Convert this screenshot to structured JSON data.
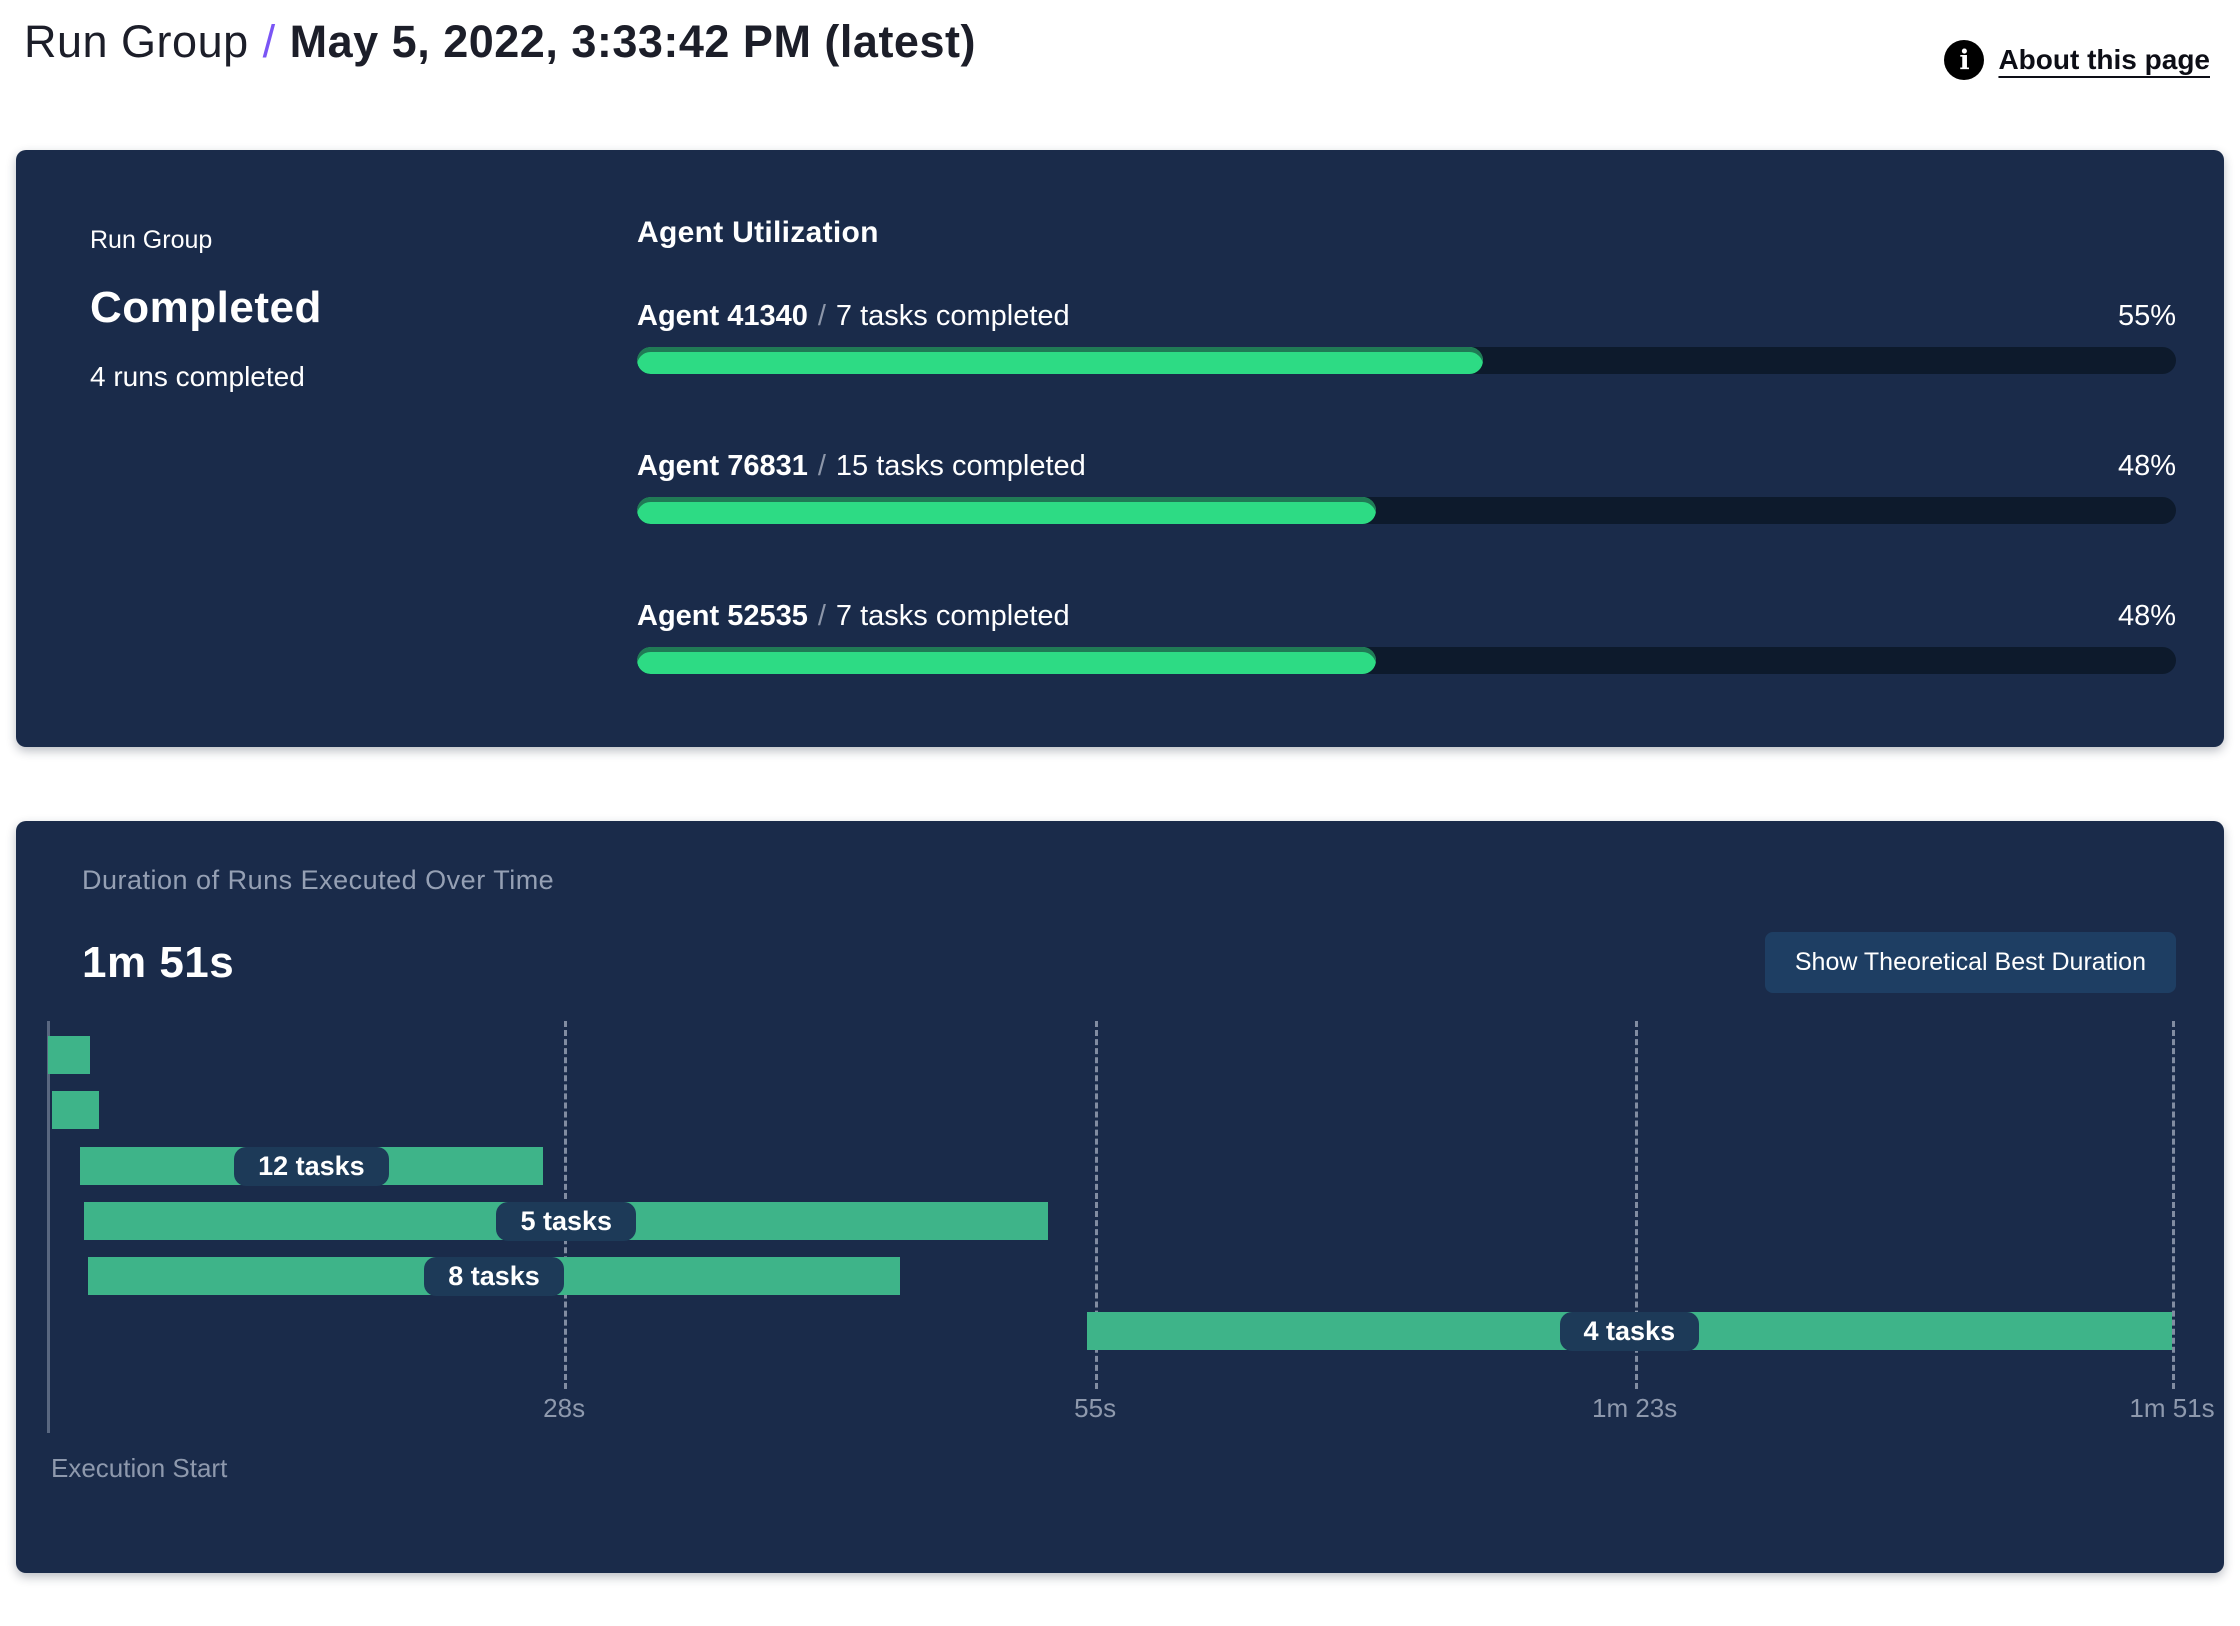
{
  "page": {
    "breadcrumb": {
      "root": "Run Group",
      "separator": "/",
      "current": "May 5, 2022, 3:33:42 PM (latest)"
    },
    "about_link": {
      "label": "About this page",
      "icon": "info-icon",
      "icon_glyph": "i"
    }
  },
  "run_group_card": {
    "eyebrow": "Run Group",
    "status": "Completed",
    "runs_summary": "4 runs completed"
  },
  "duration_card": {
    "title": "Duration of Runs Executed Over Time",
    "total_duration": "1m 51s",
    "button_label": "Show Theoretical Best Duration",
    "execution_start_label": "Execution Start"
  },
  "colors": {
    "card_bg": "#1a2b4a",
    "accent_purple": "#7a55f5",
    "utilization_fill": "#2ddb84",
    "utilization_fill_rim": "#207a55",
    "utilization_track": "#0d1a2c",
    "gantt_bar": "#3eb489",
    "pill_bg": "#1d3a58",
    "button_bg": "#1e3e63",
    "muted_text": "#8e99ad",
    "info_icon_bg": "#000000"
  },
  "chart_data": [
    {
      "id": "agent-utilization",
      "type": "bar",
      "title": "Agent Utilization",
      "unit": "%",
      "xlim": [
        0,
        100
      ],
      "separator": "/",
      "bars": [
        {
          "name": "Agent 41340",
          "tasks_label": "7 tasks completed",
          "value": 55
        },
        {
          "name": "Agent 76831",
          "tasks_label": "15 tasks completed",
          "value": 48
        },
        {
          "name": "Agent 52535",
          "tasks_label": "7 tasks completed",
          "value": 48
        }
      ],
      "bar_color": "#2ddb84",
      "track_color": "#0d1a2c",
      "value_label_position": "right"
    },
    {
      "id": "run-duration-gantt",
      "type": "bar",
      "subtype": "gantt",
      "title": "Duration of Runs Executed Over Time",
      "total_duration": "1m 51s",
      "xlabel": "Execution Start",
      "time_range_s": [
        0,
        111
      ],
      "grid": true,
      "gridline_style": "dashed",
      "x_ticks": [
        {
          "label": "28s",
          "pos_pct": 24.3
        },
        {
          "label": "55s",
          "pos_pct": 49.3
        },
        {
          "label": "1m 23s",
          "pos_pct": 74.7
        },
        {
          "label": "1m 51s",
          "pos_pct": 100
        }
      ],
      "bars": [
        {
          "row": 0,
          "label": null,
          "start_s": 0,
          "end_s": 2.2,
          "start_pct": 0,
          "end_pct": 2.0
        },
        {
          "row": 1,
          "label": null,
          "start_s": 0.2,
          "end_s": 2.7,
          "start_pct": 0.2,
          "end_pct": 2.4
        },
        {
          "row": 2,
          "label": "12 tasks",
          "start_s": 1.7,
          "end_s": 25.9,
          "start_pct": 1.5,
          "end_pct": 23.3
        },
        {
          "row": 3,
          "label": "5 tasks",
          "start_s": 1.9,
          "end_s": 52.3,
          "start_pct": 1.7,
          "end_pct": 47.1
        },
        {
          "row": 4,
          "label": "8 tasks",
          "start_s": 2.1,
          "end_s": 44.5,
          "start_pct": 1.9,
          "end_pct": 40.1
        },
        {
          "row": 5,
          "label": "4 tasks",
          "start_s": 54.3,
          "end_s": 111,
          "start_pct": 48.9,
          "end_pct": 100
        }
      ],
      "bar_color": "#3eb489"
    }
  ]
}
